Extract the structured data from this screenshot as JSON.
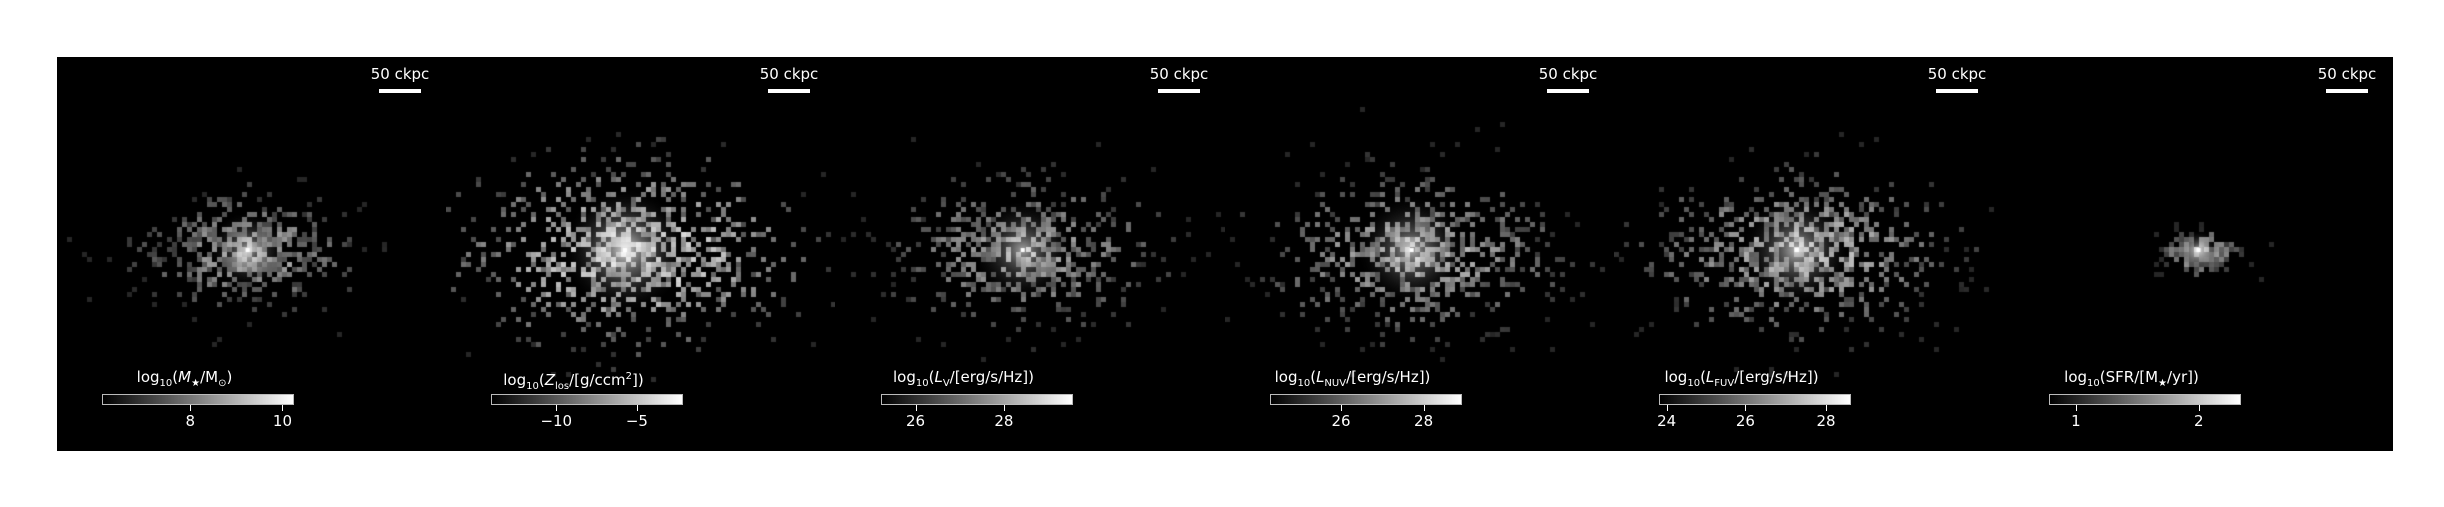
{
  "figure": {
    "background": "#ffffff",
    "strip_background": "#000000",
    "colormap": [
      "#000000",
      "#ffffff"
    ]
  },
  "panels": [
    {
      "scalebar": "50 ckpc",
      "colorbar": {
        "label_parts": [
          "log",
          "10",
          "(",
          "M",
          "★",
          "/M",
          "⊙",
          ")"
        ],
        "ticks": [
          {
            "label": "8",
            "frac": 0.46
          },
          {
            "label": "10",
            "frac": 0.94
          }
        ]
      },
      "blob": {
        "core_x": 0.49,
        "core_y": 0.49,
        "spread": 1.0,
        "density": 0.55,
        "bright": 0.7
      }
    },
    {
      "scalebar": "50 ckpc",
      "colorbar": {
        "label_parts": [
          "log",
          "10",
          "(",
          "Z",
          "los",
          "/[g/ccm",
          "2",
          "])"
        ],
        "ticks": [
          {
            "label": "−10",
            "frac": 0.34
          },
          {
            "label": "−5",
            "frac": 0.76
          }
        ]
      },
      "blob": {
        "core_x": 0.46,
        "core_y": 0.49,
        "spread": 1.6,
        "density": 0.9,
        "bright": 0.95
      }
    },
    {
      "scalebar": "50 ckpc",
      "colorbar": {
        "label_parts": [
          "log",
          "10",
          "(",
          "L",
          "V",
          "/[erg/s/Hz])"
        ],
        "ticks": [
          {
            "label": "26",
            "frac": 0.18
          },
          {
            "label": "28",
            "frac": 0.64
          }
        ]
      },
      "blob": {
        "core_x": 0.48,
        "core_y": 0.49,
        "spread": 1.3,
        "density": 0.6,
        "bright": 0.7
      }
    },
    {
      "scalebar": "50 ckpc",
      "colorbar": {
        "label_parts": [
          "log",
          "10",
          "(",
          "L",
          "NUV",
          "/[erg/s/Hz])"
        ],
        "ticks": [
          {
            "label": "26",
            "frac": 0.37
          },
          {
            "label": "28",
            "frac": 0.8
          }
        ]
      },
      "blob": {
        "core_x": 0.48,
        "core_y": 0.49,
        "spread": 1.4,
        "density": 0.7,
        "bright": 0.75
      }
    },
    {
      "scalebar": "50 ckpc",
      "colorbar": {
        "label_parts": [
          "log",
          "10",
          "(",
          "L",
          "FUV",
          "/[erg/s/Hz])"
        ],
        "ticks": [
          {
            "label": "24",
            "frac": 0.04
          },
          {
            "label": "26",
            "frac": 0.45
          },
          {
            "label": "28",
            "frac": 0.87
          }
        ]
      },
      "blob": {
        "core_x": 0.47,
        "core_y": 0.49,
        "spread": 1.4,
        "density": 0.75,
        "bright": 0.8
      }
    },
    {
      "scalebar": "50 ckpc",
      "colorbar": {
        "label_parts": [
          "log",
          "10",
          "(SFR/[M",
          "★",
          "/yr])"
        ],
        "ticks": [
          {
            "label": "1",
            "frac": 0.14
          },
          {
            "label": "2",
            "frac": 0.78
          }
        ]
      },
      "blob": {
        "core_x": 0.5,
        "core_y": 0.49,
        "spread": 0.35,
        "density": 0.25,
        "bright": 0.8
      }
    }
  ]
}
